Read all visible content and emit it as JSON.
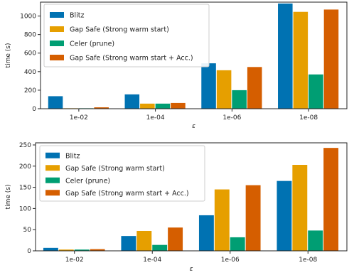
{
  "chart_data": [
    {
      "type": "bar",
      "categories": [
        "1e-02",
        "1e-04",
        "1e-06",
        "1e-08"
      ],
      "xlabel": "ε",
      "ylabel": "time (s)",
      "ylim": [
        0,
        1150
      ],
      "yticks": [
        0,
        200,
        400,
        600,
        800,
        1000
      ],
      "legend_position": "top-left",
      "series": [
        {
          "name": "Blitz",
          "color": "#0072b2",
          "values": [
            135,
            155,
            490,
            1135
          ]
        },
        {
          "name": "Gap Safe (Strong warm start)",
          "color": "#e69f00",
          "values": [
            5,
            55,
            415,
            1045
          ]
        },
        {
          "name": "Celer (prune)",
          "color": "#009e73",
          "values": [
            5,
            55,
            200,
            370
          ]
        },
        {
          "name": "Gap Safe (Strong warm start + Acc.)",
          "color": "#d55e00",
          "values": [
            15,
            62,
            450,
            1070
          ]
        }
      ]
    },
    {
      "type": "bar",
      "categories": [
        "1e-02",
        "1e-04",
        "1e-06",
        "1e-08"
      ],
      "xlabel": "ε",
      "ylabel": "time (s)",
      "ylim": [
        0,
        255
      ],
      "yticks": [
        0,
        50,
        100,
        150,
        200,
        250
      ],
      "legend_position": "top-left",
      "series": [
        {
          "name": "Blitz",
          "color": "#0072b2",
          "values": [
            7,
            35,
            84,
            165
          ]
        },
        {
          "name": "Gap Safe (Strong warm start)",
          "color": "#e69f00",
          "values": [
            3,
            47,
            145,
            203
          ]
        },
        {
          "name": "Celer (prune)",
          "color": "#009e73",
          "values": [
            3,
            14,
            32,
            48
          ]
        },
        {
          "name": "Gap Safe (Strong warm start + Acc.)",
          "color": "#d55e00",
          "values": [
            4,
            55,
            155,
            243
          ]
        }
      ]
    }
  ]
}
